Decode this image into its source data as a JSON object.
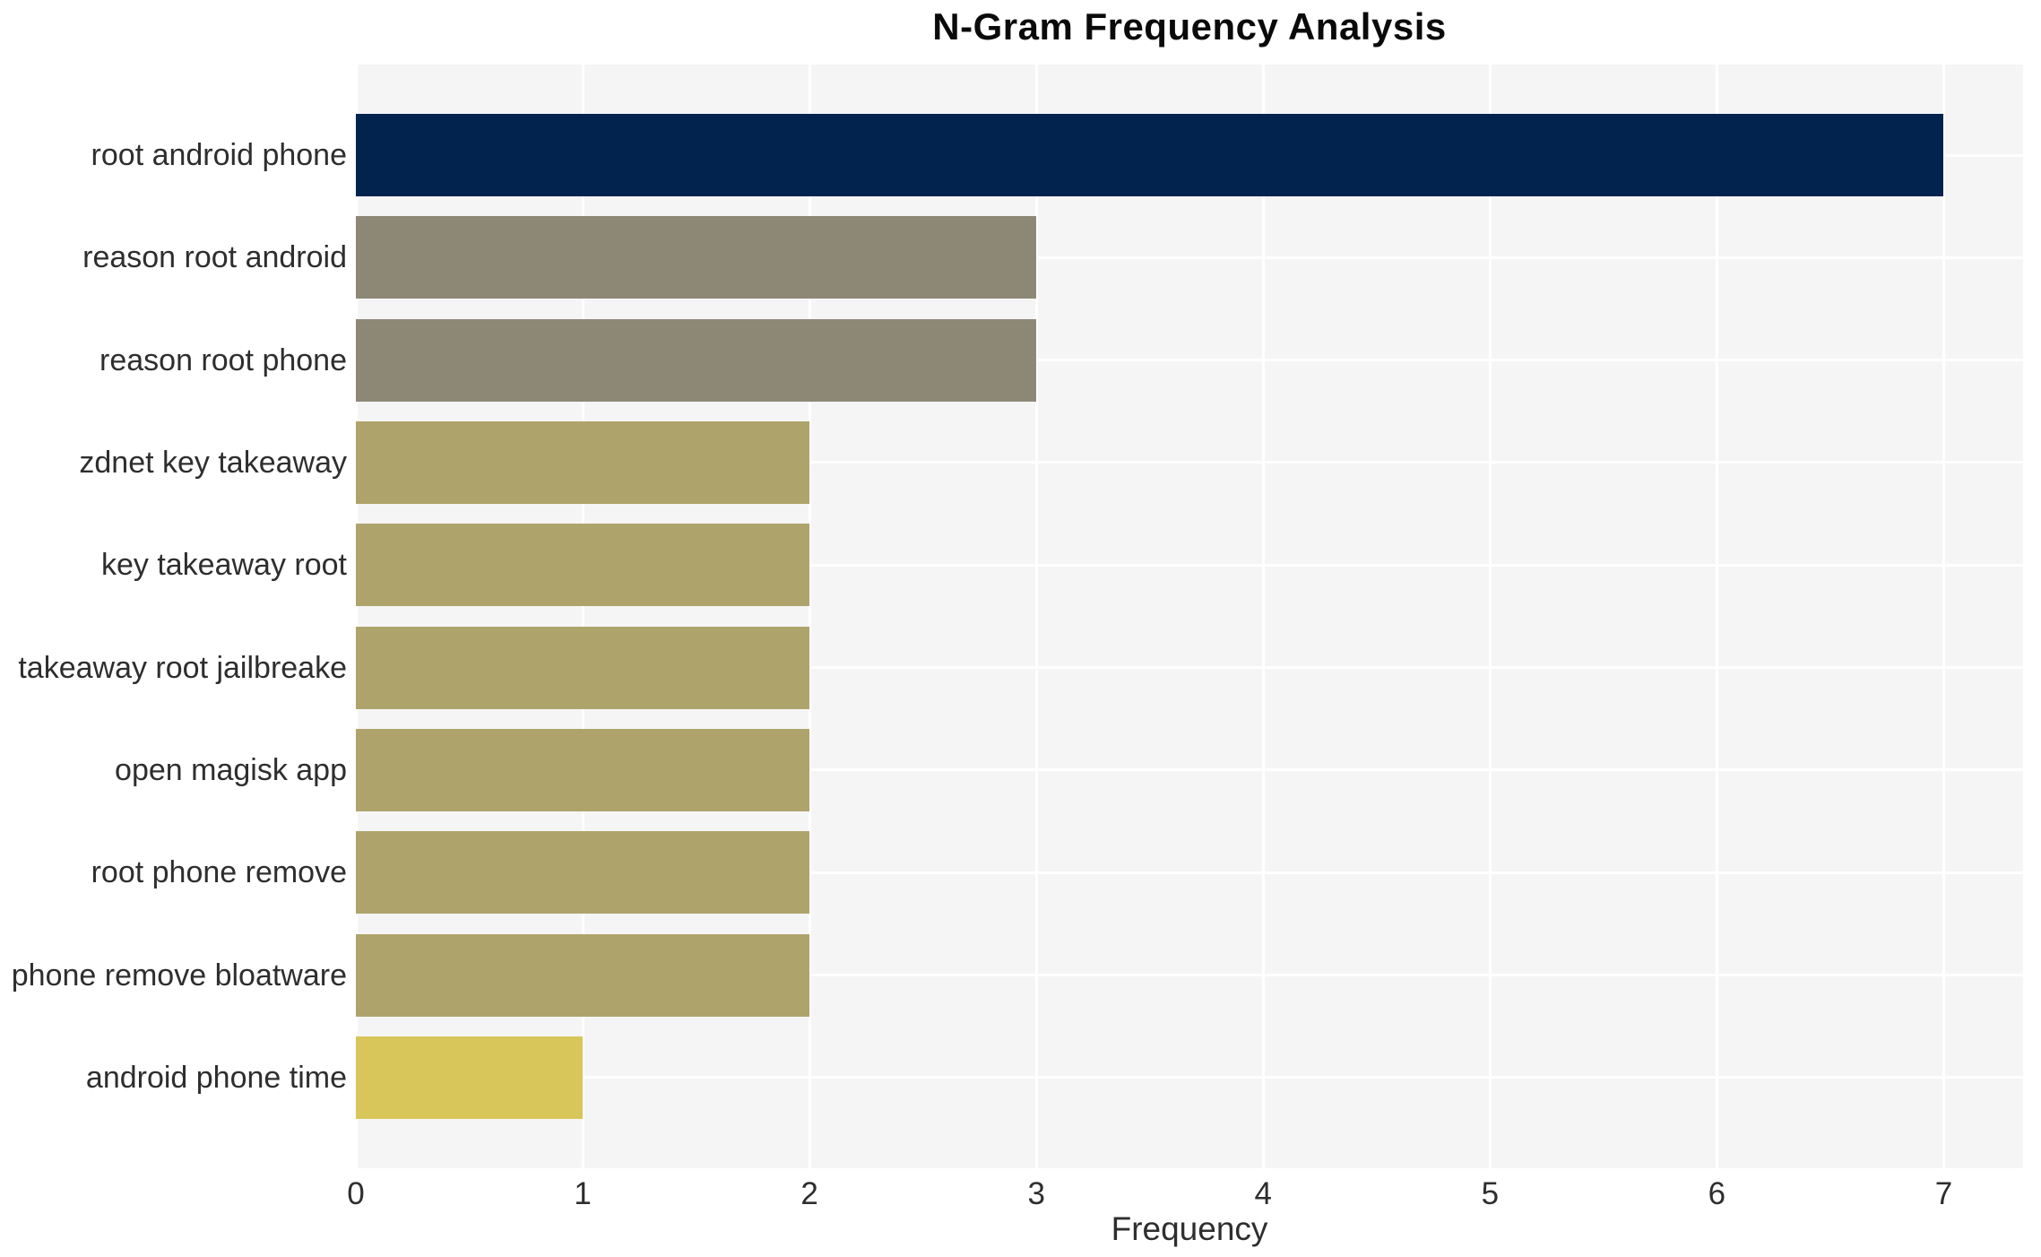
{
  "chart_data": {
    "type": "bar",
    "orientation": "horizontal",
    "title": "N-Gram Frequency Analysis",
    "xlabel": "Frequency",
    "ylabel": "",
    "categories": [
      "root android phone",
      "reason root android",
      "reason root phone",
      "zdnet key takeaway",
      "key takeaway root",
      "takeaway root jailbreake",
      "open magisk app",
      "root phone remove",
      "phone remove bloatware",
      "android phone time"
    ],
    "values": [
      7,
      3,
      3,
      2,
      2,
      2,
      2,
      2,
      2,
      1
    ],
    "bar_colors": [
      "#02234e",
      "#8d8776",
      "#8d8776",
      "#aea46b",
      "#aea46b",
      "#aea46b",
      "#aea46b",
      "#aea46b",
      "#aea46b",
      "#d9c65a"
    ],
    "xticks": [
      0,
      1,
      2,
      3,
      4,
      5,
      6,
      7
    ],
    "xlim": [
      0,
      7.35
    ],
    "grid": true,
    "legend": "none",
    "plot_background": "#f5f5f6",
    "grid_color": "#ffffff",
    "title_color": "#0a0a0a",
    "text_color": "#2e2e2e"
  }
}
